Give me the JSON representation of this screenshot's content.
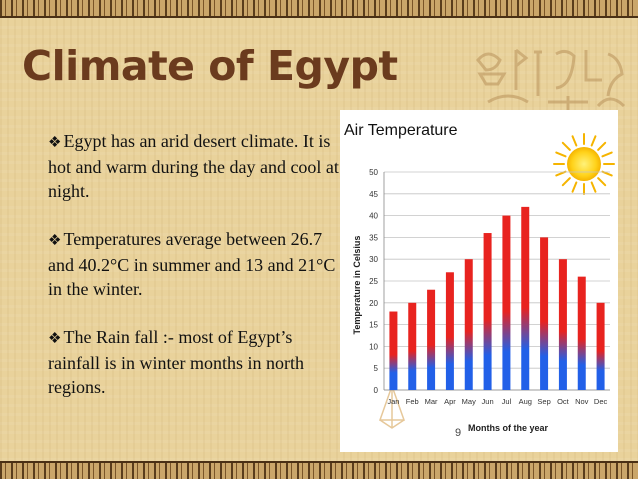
{
  "slide": {
    "title": "Climate of Egypt",
    "bullet_marker": "❖",
    "bullets": [
      "Egypt has an arid desert climate. It is hot and warm during the day and cool at night.",
      "Temperatures average between 26.7 and 40.2°C in summer and 13 and 21°C in the winter.",
      "The Rain fall :- most of Egypt’s rainfall is in winter months in north regions."
    ],
    "page_number": "9"
  },
  "colors": {
    "title": "#6b3b1e",
    "bar_top": "#e8231f",
    "bar_bottom": "#2260e8"
  },
  "chart_data": {
    "type": "bar",
    "title": "Air Temperature",
    "xlabel": "Months of the year",
    "ylabel": "Temperature in Celsius",
    "categories": [
      "Jan",
      "Feb",
      "Mar",
      "Apr",
      "May",
      "Jun",
      "Jul",
      "Aug",
      "Sep",
      "Oct",
      "Nov",
      "Dec"
    ],
    "values": [
      18,
      20,
      23,
      27,
      30,
      36,
      40,
      42,
      35,
      30,
      26,
      20
    ],
    "ylim": [
      0,
      50
    ],
    "yticks": [
      0,
      5,
      10,
      15,
      20,
      25,
      30,
      35,
      40,
      45,
      50
    ],
    "grid": true,
    "legend": "none"
  }
}
